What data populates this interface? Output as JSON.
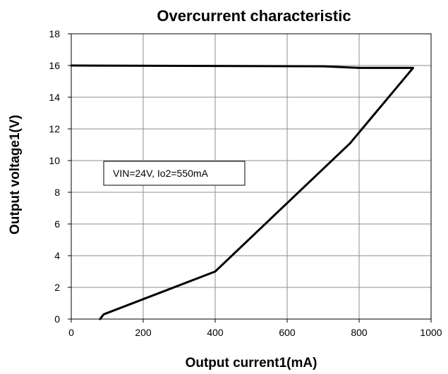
{
  "chart_data": {
    "type": "line",
    "title": "Overcurrent characteristic",
    "xlabel": "Output  current1(mA)",
    "ylabel": "Output  voltage1(V)",
    "xlim": [
      0,
      1000
    ],
    "ylim": [
      0,
      18
    ],
    "xticks": [
      0,
      200,
      400,
      600,
      800,
      1000
    ],
    "yticks": [
      0,
      2,
      4,
      6,
      8,
      10,
      12,
      14,
      16,
      18
    ],
    "grid": true,
    "legend": "none",
    "annotation": "VIN=24V, Io2=550mA",
    "series": [
      {
        "color": "#000000",
        "x": [
          0,
          700,
          800,
          950,
          775,
          400,
          90,
          80
        ],
        "y": [
          16.0,
          15.95,
          15.85,
          15.85,
          11.1,
          3.0,
          0.3,
          0.0
        ]
      }
    ]
  }
}
